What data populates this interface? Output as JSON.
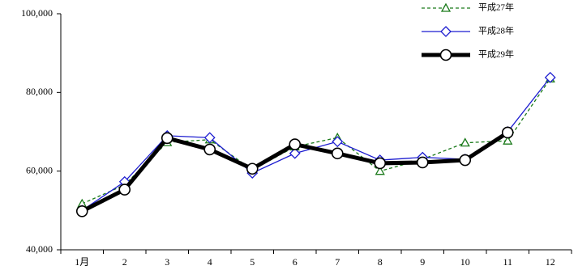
{
  "chart_data": {
    "type": "line",
    "categories": [
      "1月",
      "2",
      "3",
      "4",
      "5",
      "6",
      "7",
      "8",
      "9",
      "10",
      "11",
      "12"
    ],
    "series": [
      {
        "name": "平成27年",
        "color": "#1a7a1a",
        "dash": true,
        "width": 1.3,
        "marker": "triangle",
        "values": [
          51700,
          56500,
          67300,
          68000,
          60300,
          66200,
          68500,
          60000,
          63000,
          67200,
          67700,
          83500
        ]
      },
      {
        "name": "平成28年",
        "color": "#1c1cd0",
        "dash": false,
        "width": 1.3,
        "marker": "diamond",
        "values": [
          50000,
          57300,
          69000,
          68500,
          59500,
          64500,
          67500,
          62800,
          63500,
          63000,
          70000,
          83800
        ]
      },
      {
        "name": "平成29年",
        "color": "#000000",
        "dash": false,
        "width": 5,
        "marker": "circle",
        "values": [
          49800,
          55300,
          68400,
          65500,
          60600,
          66800,
          64500,
          62000,
          62200,
          62800,
          69800,
          null
        ]
      }
    ],
    "ylim": [
      40000,
      100000
    ],
    "yticks": [
      {
        "value": 40000,
        "label": "40,000"
      },
      {
        "value": 60000,
        "label": "60,000"
      },
      {
        "value": 80000,
        "label": "80,000"
      },
      {
        "value": 100000,
        "label": "100,000"
      }
    ],
    "grid": false,
    "legend": "top-right"
  }
}
